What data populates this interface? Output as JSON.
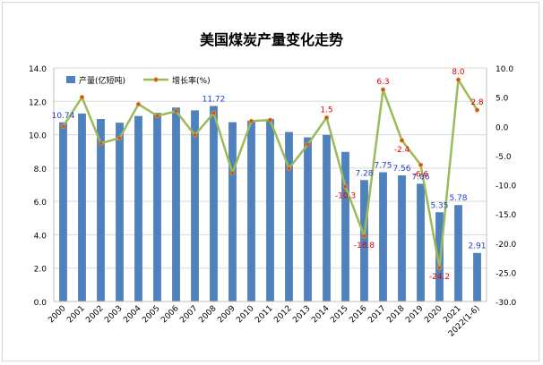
{
  "chart_data": {
    "type": "bar",
    "title": "美国煤炭产量变化走势",
    "categories": [
      "2000",
      "2001",
      "2002",
      "2003",
      "2004",
      "2005",
      "2006",
      "2007",
      "2008",
      "2009",
      "2010",
      "2011",
      "2012",
      "2013",
      "2014",
      "2015",
      "2016",
      "2017",
      "2018",
      "2019",
      "2020",
      "2021",
      "2022(1-6)"
    ],
    "series": [
      {
        "name": "产量(亿短吨)",
        "type": "bar",
        "axis": "left",
        "color": "#4f81bd",
        "values": [
          10.74,
          11.27,
          10.94,
          10.72,
          11.12,
          11.31,
          11.63,
          11.46,
          11.72,
          10.75,
          10.84,
          10.94,
          10.16,
          9.84,
          9.99,
          8.97,
          7.28,
          7.75,
          7.56,
          7.06,
          5.35,
          5.78,
          2.91
        ]
      },
      {
        "name": "增长率(%)",
        "type": "line",
        "axis": "right",
        "color": "#9bbb59",
        "marker_color": "#c0504d",
        "values": [
          0.0,
          5.0,
          -2.9,
          -2.0,
          3.8,
          1.8,
          2.6,
          -1.5,
          2.3,
          -8.0,
          0.9,
          1.1,
          -7.2,
          -3.1,
          1.5,
          -10.3,
          -18.8,
          6.3,
          -2.4,
          -6.6,
          -24.2,
          8.0,
          2.8
        ]
      }
    ],
    "bar_labels": [
      {
        "index": 0,
        "text": "10.74"
      },
      {
        "index": 8,
        "text": "11.72"
      },
      {
        "index": 16,
        "text": "7.28"
      },
      {
        "index": 17,
        "text": "7.75"
      },
      {
        "index": 18,
        "text": "7.56"
      },
      {
        "index": 19,
        "text": "7.06"
      },
      {
        "index": 20,
        "text": "5.35"
      },
      {
        "index": 21,
        "text": "5.78"
      },
      {
        "index": 22,
        "text": "2.91"
      }
    ],
    "line_labels": [
      {
        "index": 14,
        "text": "1.5"
      },
      {
        "index": 15,
        "text": "-10.3"
      },
      {
        "index": 16,
        "text": "-18.8"
      },
      {
        "index": 17,
        "text": "6.3"
      },
      {
        "index": 18,
        "text": "-2.4"
      },
      {
        "index": 19,
        "text": "-6.6"
      },
      {
        "index": 20,
        "text": "-24.2"
      },
      {
        "index": 21,
        "text": "8.0"
      },
      {
        "index": 22,
        "text": "2.8"
      }
    ],
    "ylim_left": [
      0,
      14
    ],
    "yticks_left": [
      "0.0",
      "2.0",
      "4.0",
      "6.0",
      "8.0",
      "10.0",
      "12.0",
      "14.0"
    ],
    "ylim_right": [
      -30,
      10
    ],
    "yticks_right": [
      "-30.0",
      "-25.0",
      "-20.0",
      "-15.0",
      "-10.0",
      "-5.0",
      "0.0",
      "5.0",
      "10.0"
    ],
    "grid": true,
    "legend_position": "top-left",
    "bar_label_color": "#1f3fbf",
    "line_label_color": "#e00000"
  }
}
